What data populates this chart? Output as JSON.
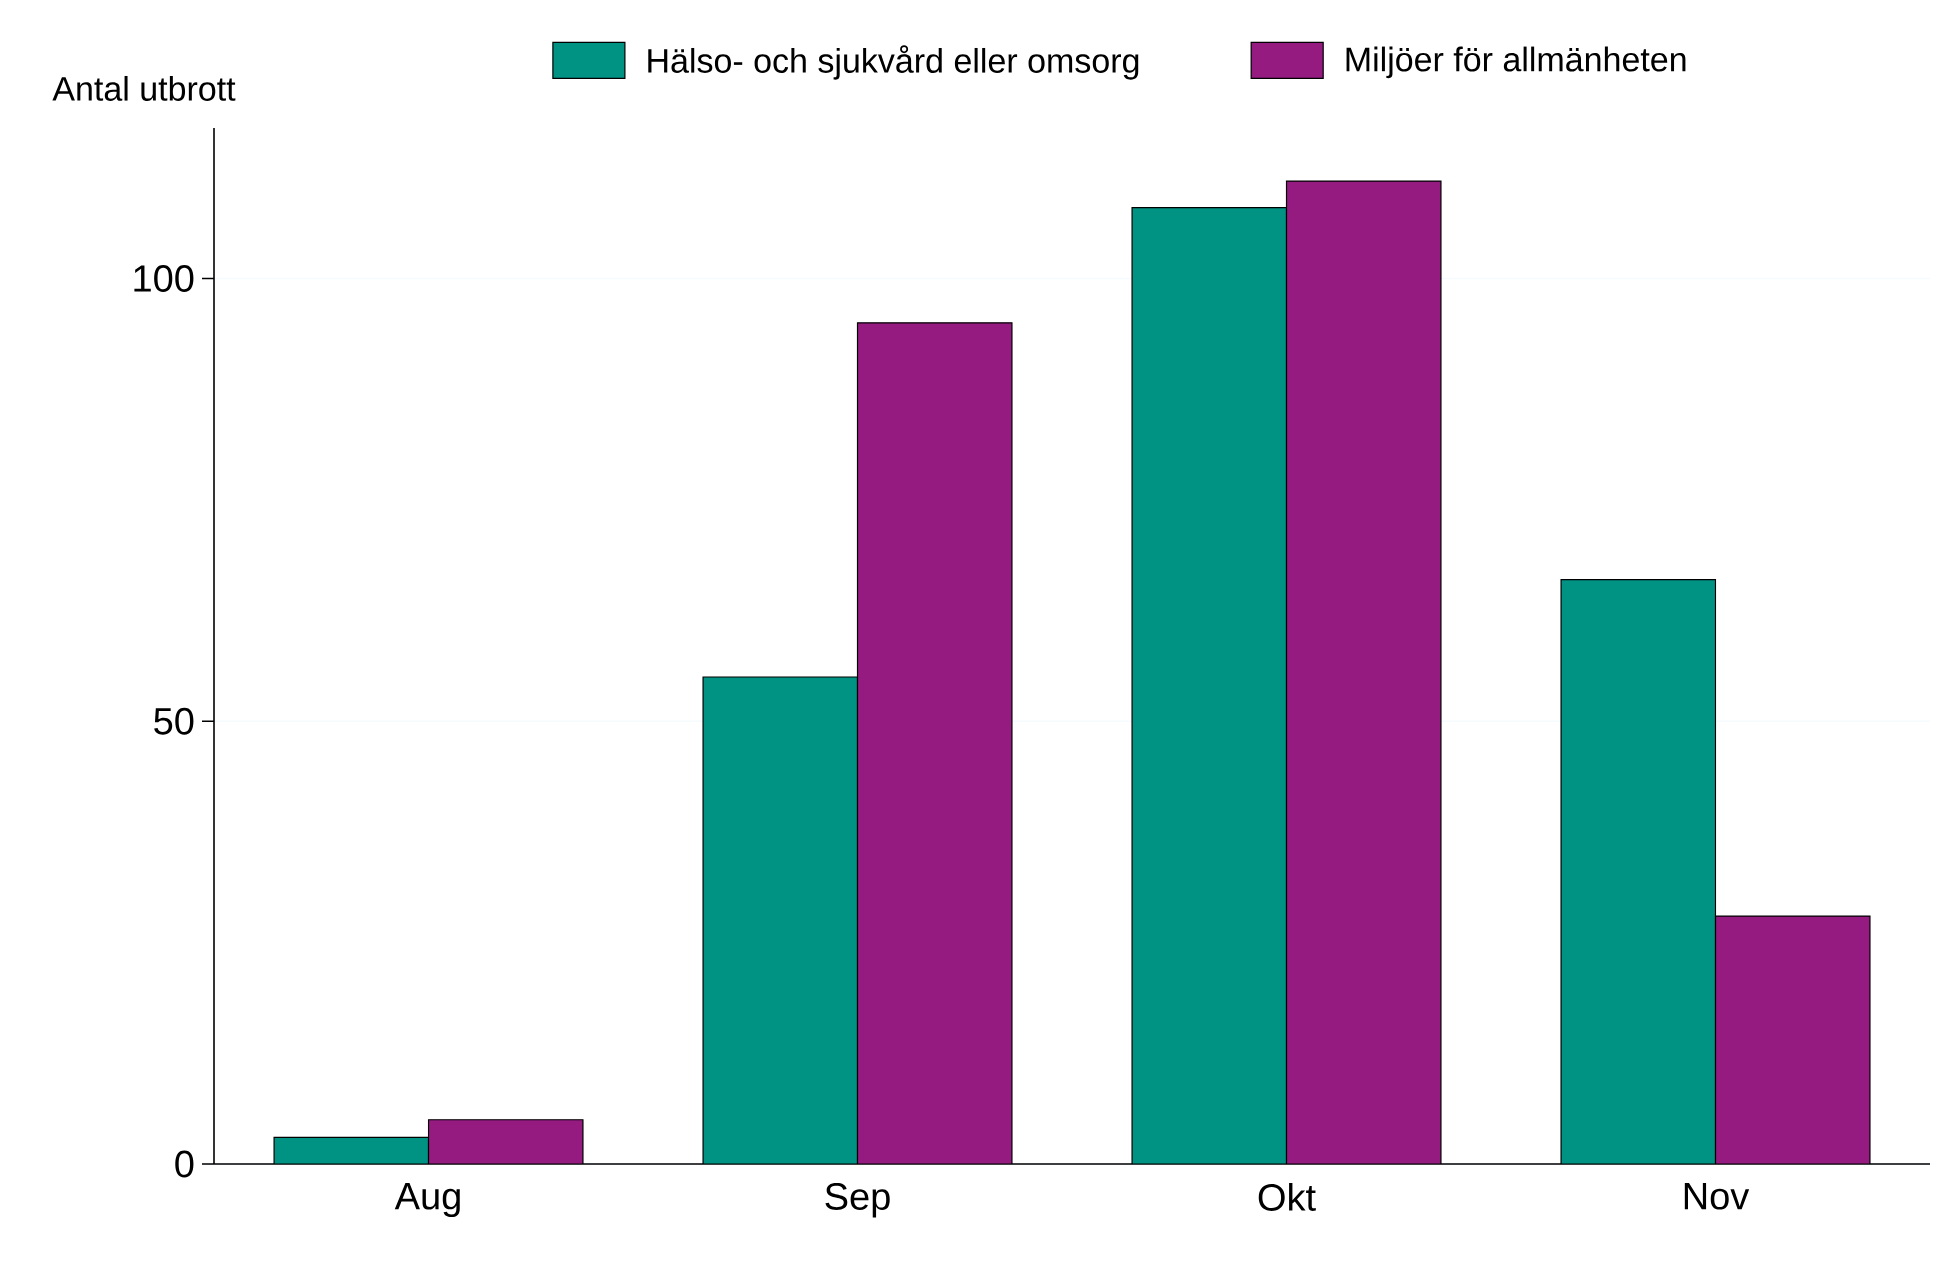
{
  "chart_data": {
    "type": "bar",
    "ylabel": "Antal utbrott",
    "categories": [
      "Aug",
      "Sep",
      "Okt",
      "Nov"
    ],
    "series": [
      {
        "name": "Hälso- och sjukvård eller omsorg",
        "color": "#009383",
        "values": [
          3,
          55,
          108,
          66
        ]
      },
      {
        "name": "Miljöer för allmänheten",
        "color": "#951b81",
        "values": [
          5,
          95,
          111,
          28
        ]
      }
    ],
    "ylim": [
      0,
      117
    ],
    "yticks": [
      0,
      50,
      100
    ],
    "grid": "y",
    "legend": "top"
  }
}
